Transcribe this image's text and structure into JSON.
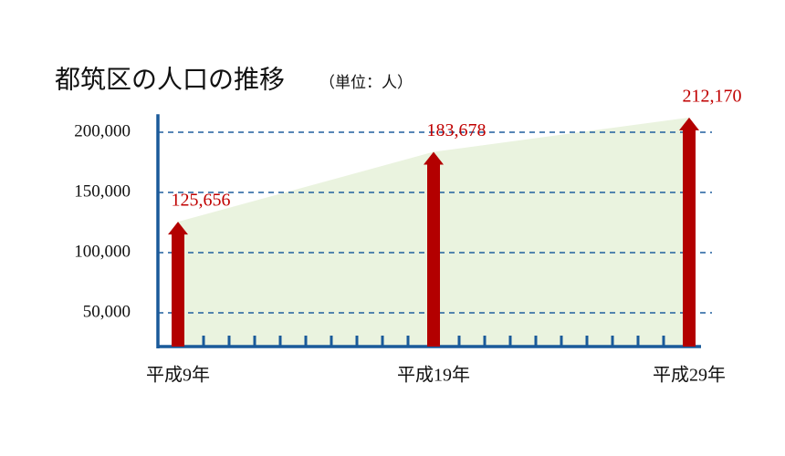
{
  "chart_data": {
    "type": "arrow-bar",
    "title": "都筑区の人口の推移",
    "subtitle": "（単位：人）",
    "categories": [
      "平成9年",
      "平成19年",
      "平成29年"
    ],
    "values": [
      125656,
      183678,
      212170
    ],
    "value_labels": [
      "125,656",
      "183,678",
      "212,170"
    ],
    "color": "#b30000",
    "area_color": "#eaf3df",
    "ylim": [
      22000,
      215000
    ],
    "yticks": [
      {
        "value": 50000,
        "label": "50,000"
      },
      {
        "value": 100000,
        "label": "100,000"
      },
      {
        "value": 150000,
        "label": "150,000"
      },
      {
        "value": 200000,
        "label": "200,000"
      }
    ],
    "grid": true
  }
}
